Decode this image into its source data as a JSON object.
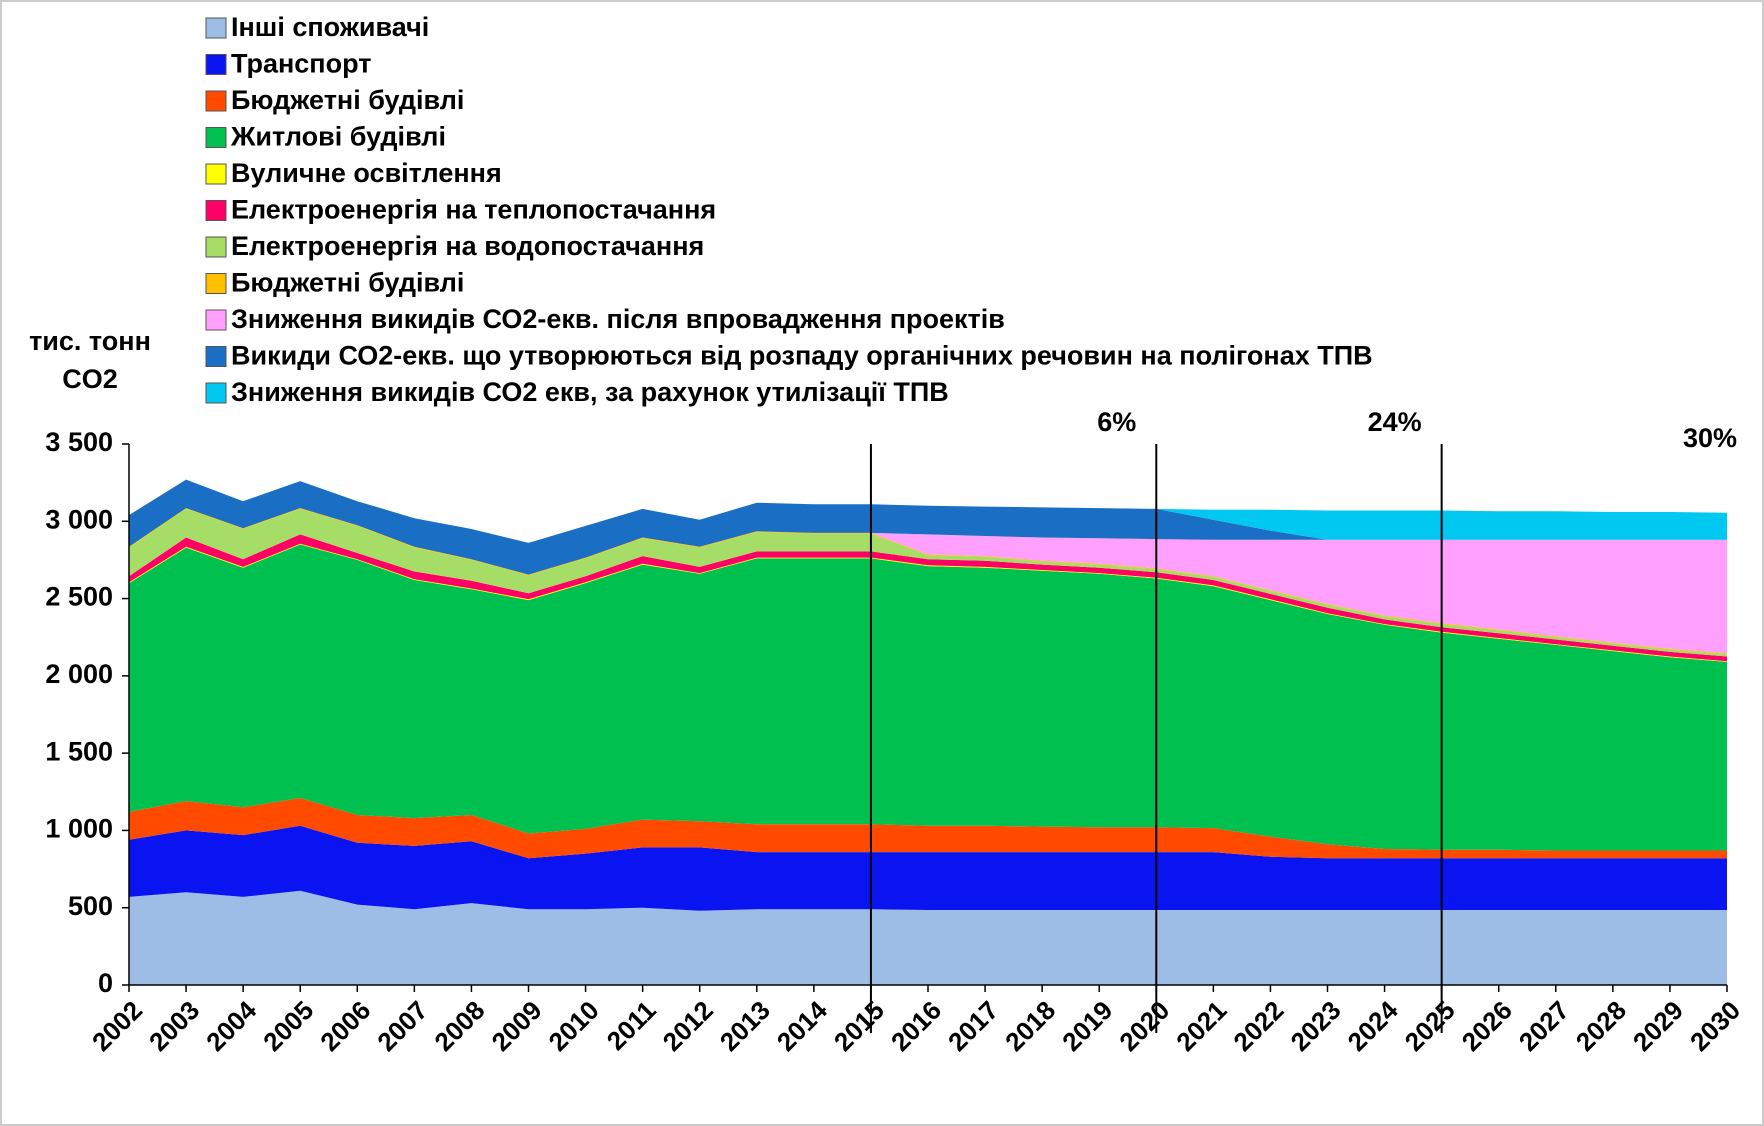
{
  "chart_data": {
    "type": "stacked_area",
    "ylabel": "тис. тонн CO2",
    "categories": [
      "2002",
      "2003",
      "2004",
      "2005",
      "2006",
      "2007",
      "2008",
      "2009",
      "2010",
      "2011",
      "2012",
      "2013",
      "2014",
      "2015",
      "2016",
      "2017",
      "2018",
      "2019",
      "2020",
      "2021",
      "2022",
      "2023",
      "2024",
      "2025",
      "2026",
      "2027",
      "2028",
      "2029",
      "2030"
    ],
    "series": [
      {
        "name": "Інші споживачі",
        "color": "#9dbde6",
        "values": [
          570,
          600,
          570,
          610,
          520,
          490,
          530,
          490,
          490,
          500,
          480,
          490,
          490,
          490,
          485,
          485,
          485,
          485,
          485,
          485,
          485,
          485,
          485,
          485,
          485,
          485,
          485,
          485,
          485
        ]
      },
      {
        "name": "Транспорт",
        "color": "#0a14f0",
        "values": [
          370,
          400,
          400,
          420,
          400,
          410,
          400,
          330,
          360,
          390,
          410,
          370,
          370,
          370,
          375,
          375,
          375,
          375,
          375,
          375,
          345,
          335,
          335,
          335,
          335,
          335,
          335,
          335,
          335
        ]
      },
      {
        "name": "Бюджетні будівлі",
        "color": "#ff4a00",
        "values": [
          180,
          190,
          180,
          180,
          180,
          180,
          170,
          160,
          160,
          180,
          170,
          180,
          180,
          180,
          170,
          170,
          165,
          160,
          160,
          155,
          130,
          90,
          60,
          55,
          55,
          50,
          50,
          50,
          50
        ]
      },
      {
        "name": "Житлові будівлі",
        "color": "#00c050",
        "values": [
          1480,
          1640,
          1550,
          1640,
          1650,
          1540,
          1460,
          1510,
          1590,
          1650,
          1600,
          1720,
          1720,
          1720,
          1680,
          1670,
          1655,
          1640,
          1610,
          1565,
          1530,
          1490,
          1450,
          1405,
          1365,
          1330,
          1290,
          1250,
          1220
        ]
      },
      {
        "name": "Вуличне освітлення",
        "color": "#ffff00",
        "values": [
          5,
          5,
          5,
          5,
          5,
          5,
          5,
          5,
          5,
          5,
          5,
          5,
          5,
          5,
          5,
          5,
          5,
          5,
          5,
          5,
          5,
          5,
          5,
          5,
          5,
          5,
          5,
          5,
          5
        ]
      },
      {
        "name": "Електроенергія на теплопостачання",
        "color": "#ff0066",
        "values": [
          40,
          60,
          50,
          60,
          40,
          50,
          50,
          40,
          40,
          50,
          40,
          40,
          40,
          40,
          40,
          40,
          35,
          35,
          35,
          35,
          35,
          35,
          30,
          30,
          30,
          30,
          30,
          30,
          30
        ]
      },
      {
        "name": "Електроенергія на водопостачання",
        "color": "#a6dd66",
        "values": [
          185,
          185,
          195,
          165,
          175,
          155,
          135,
          115,
          115,
          115,
          125,
          125,
          115,
          115,
          25,
          25,
          20,
          20,
          20,
          20,
          20,
          20,
          20,
          20,
          20,
          15,
          15,
          15,
          15
        ]
      },
      {
        "name": "Бюджетні будівлі",
        "color": "#ffc000",
        "values": [
          5,
          5,
          5,
          5,
          5,
          5,
          5,
          5,
          5,
          5,
          5,
          5,
          5,
          5,
          5,
          5,
          5,
          5,
          5,
          5,
          5,
          5,
          5,
          5,
          5,
          5,
          5,
          5,
          5
        ]
      },
      {
        "name": "Зниження викидів СО2-екв. після впровадження проектів",
        "color": "#ffa0ff",
        "values": [
          0,
          0,
          0,
          0,
          0,
          0,
          0,
          0,
          0,
          0,
          0,
          0,
          0,
          0,
          130,
          130,
          150,
          165,
          190,
          235,
          325,
          415,
          490,
          540,
          580,
          625,
          665,
          705,
          735
        ]
      },
      {
        "name": "Викиди СО2-екв. що утворюються від розпаду органічних речовин на полігонах ТПВ",
        "color": "#1a6fc4",
        "values": [
          205,
          185,
          175,
          175,
          155,
          185,
          195,
          205,
          205,
          185,
          175,
          185,
          185,
          185,
          185,
          190,
          195,
          195,
          195,
          130,
          60,
          0,
          0,
          0,
          0,
          0,
          0,
          0,
          0
        ]
      },
      {
        "name": "Зниження викидів СО2 екв, за рахунок утилізації ТПВ",
        "color": "#00c8f0",
        "values": [
          0,
          0,
          0,
          0,
          0,
          0,
          0,
          0,
          0,
          0,
          0,
          0,
          0,
          0,
          0,
          0,
          0,
          0,
          0,
          65,
          135,
          190,
          190,
          190,
          185,
          185,
          180,
          180,
          175
        ]
      }
    ],
    "ylim": [
      0,
      3500
    ],
    "yticks": [
      0,
      500,
      {
        "value": 1000,
        "label": "1 000"
      },
      {
        "value": 1500,
        "label": "1 500"
      },
      {
        "value": 2000,
        "label": "2 000"
      },
      {
        "value": 2500,
        "label": "2 500"
      },
      {
        "value": 3000,
        "label": "3 000"
      },
      {
        "value": 3500,
        "label": "3 500"
      }
    ],
    "vlines": [
      "2015",
      "2020",
      "2025"
    ],
    "annotations": [
      {
        "text": "6%",
        "x": "2020"
      },
      {
        "text": "24%",
        "x": "2025"
      },
      {
        "text": "30%",
        "x": "2030"
      }
    ],
    "legend": "top-left"
  }
}
